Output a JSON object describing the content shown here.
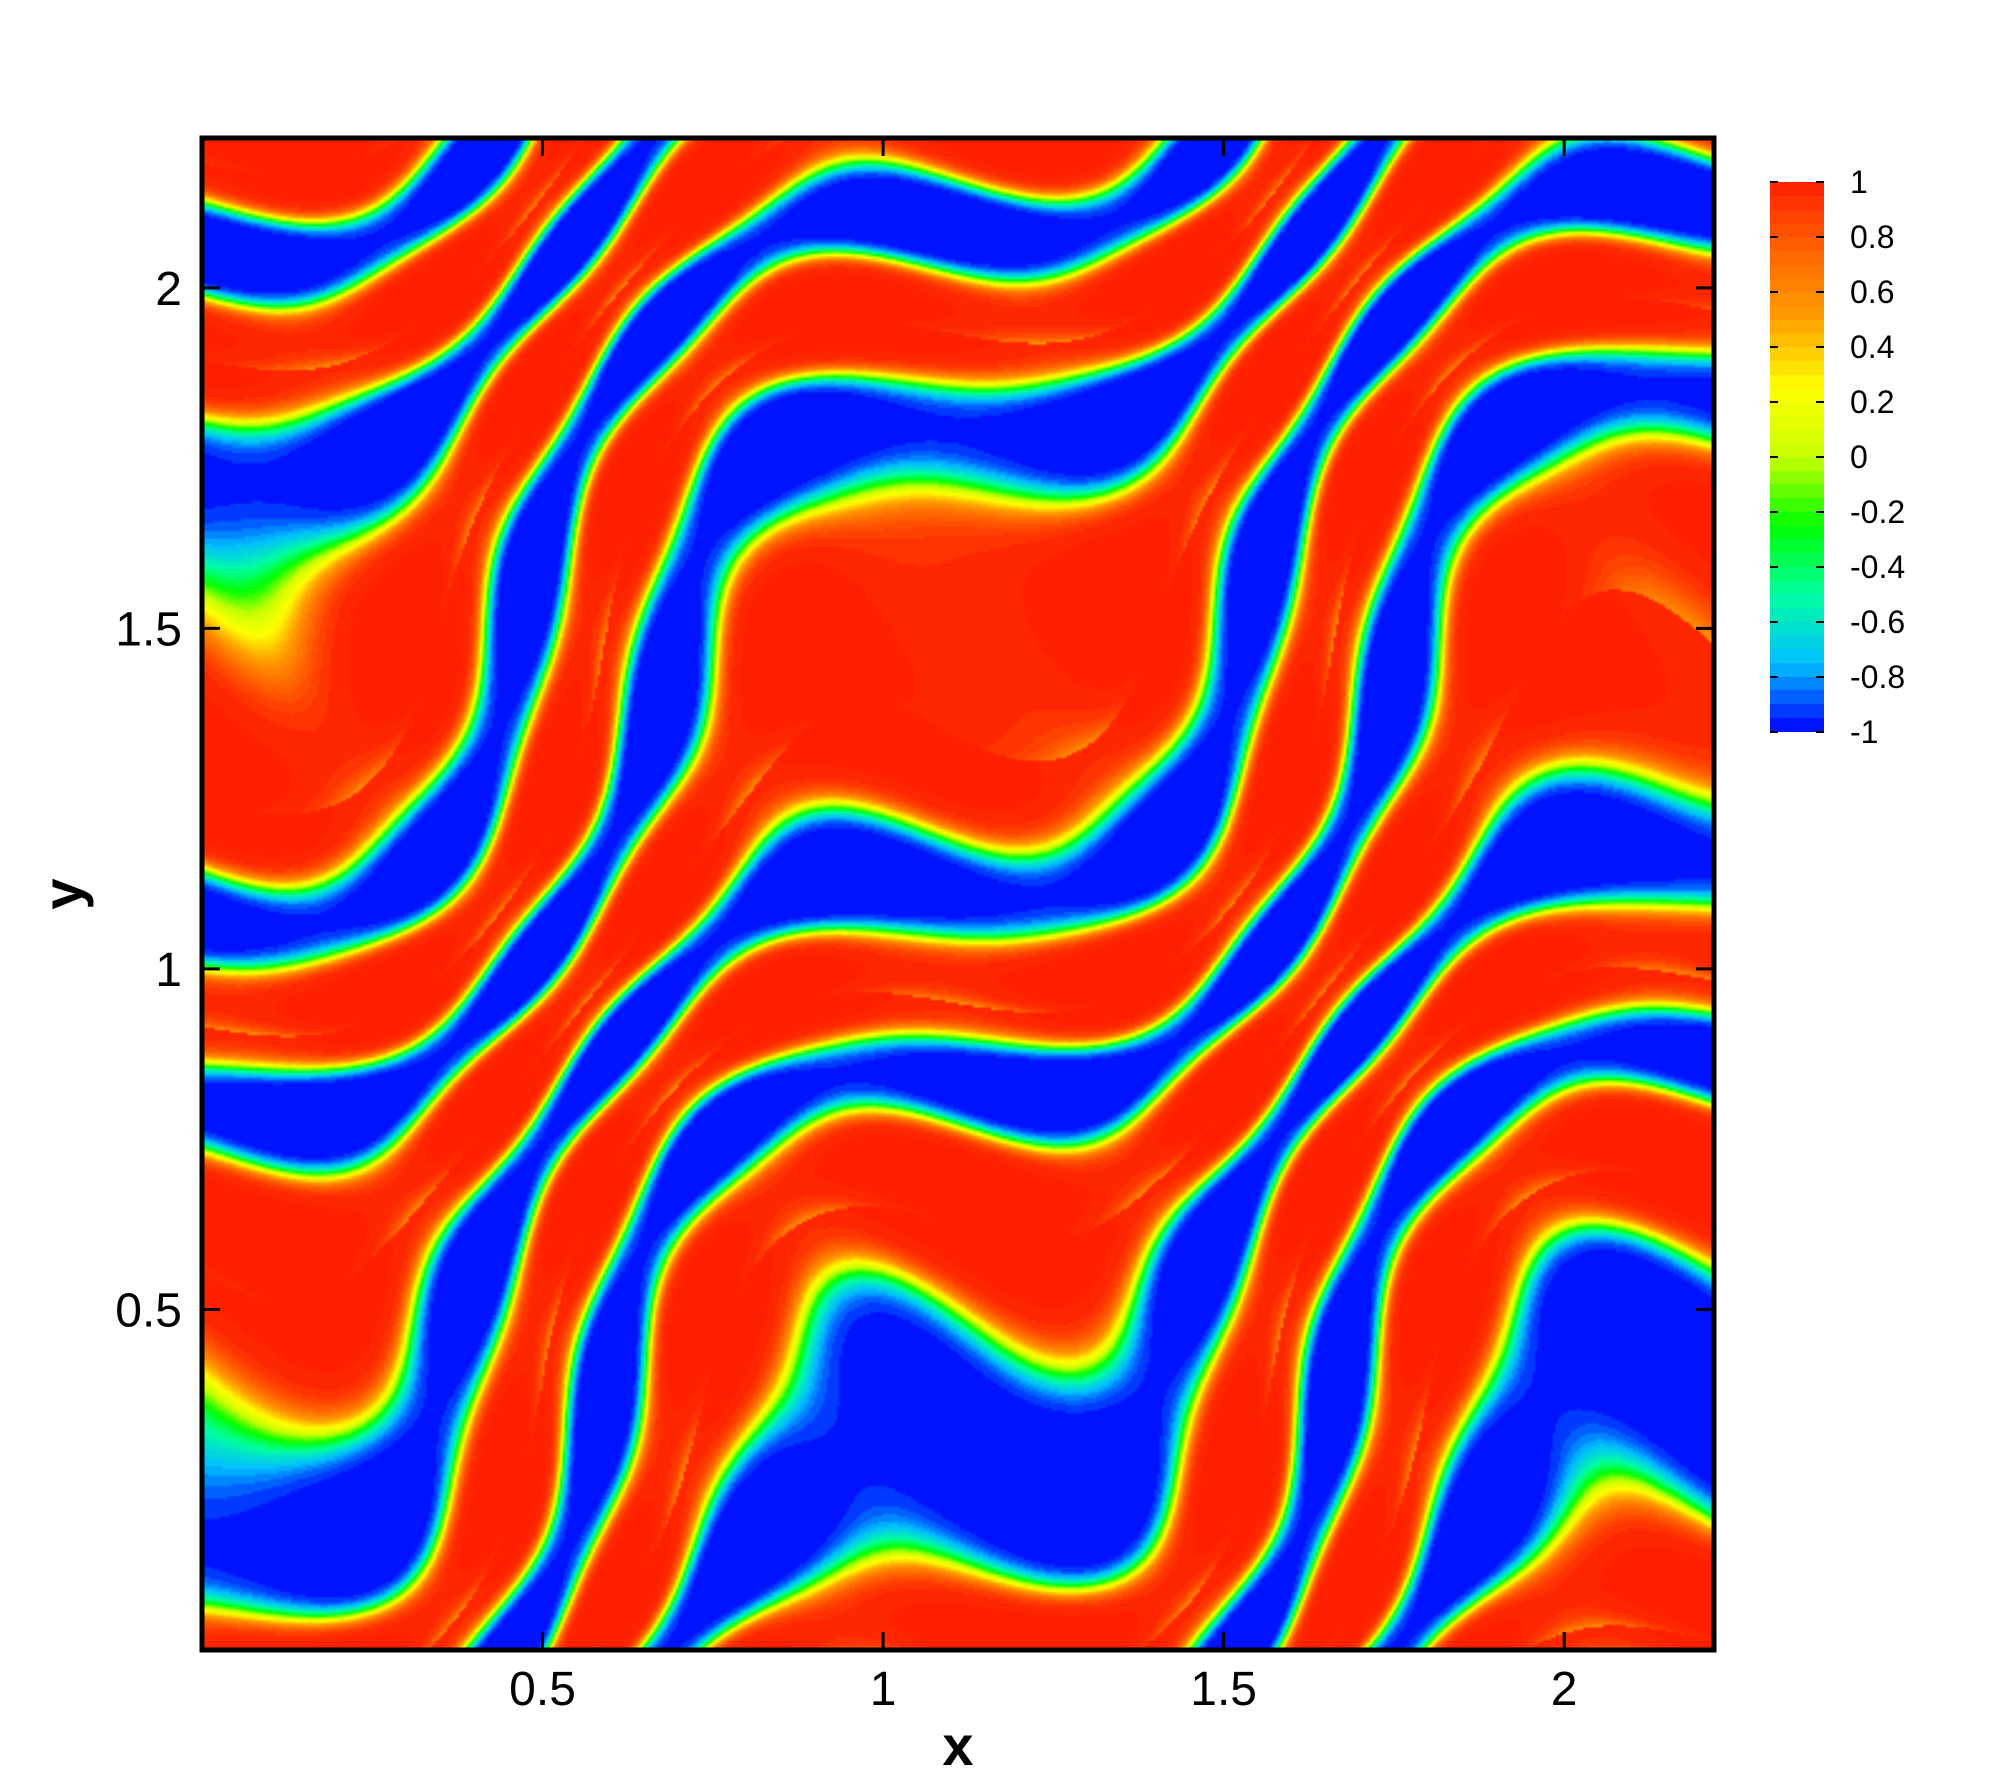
{
  "chart_data": {
    "type": "heatmap",
    "title": "",
    "xlabel": "x",
    "ylabel": "y",
    "xlim": [
      0,
      2.22
    ],
    "ylim": [
      0,
      2.22
    ],
    "x_ticks": [
      0.5,
      1,
      1.5,
      2
    ],
    "x_tick_labels": [
      "0.5",
      "1",
      "1.5",
      "2"
    ],
    "y_ticks": [
      0.5,
      1,
      1.5,
      2
    ],
    "y_tick_labels": [
      "0.5",
      "1",
      "1.5",
      "2"
    ],
    "value_range": [
      -1,
      1
    ],
    "colorbar_ticks": [
      1,
      0.8,
      0.6,
      0.4,
      0.2,
      0,
      -0.2,
      -0.4,
      -0.6,
      -0.8,
      -1
    ],
    "colorbar_labels": [
      "1",
      "0.8",
      "0.6",
      "0.4",
      "0.2",
      "0",
      "-0.2",
      "-0.4",
      "-0.6",
      "-0.8",
      "-1"
    ],
    "colormap": [
      "#0000ff",
      "#00bfff",
      "#00ffa0",
      "#00ff00",
      "#c8ff00",
      "#ffff00",
      "#ffa000",
      "#ff6400",
      "#ff2000"
    ],
    "grid": false,
    "legend": "colorbar right"
  }
}
